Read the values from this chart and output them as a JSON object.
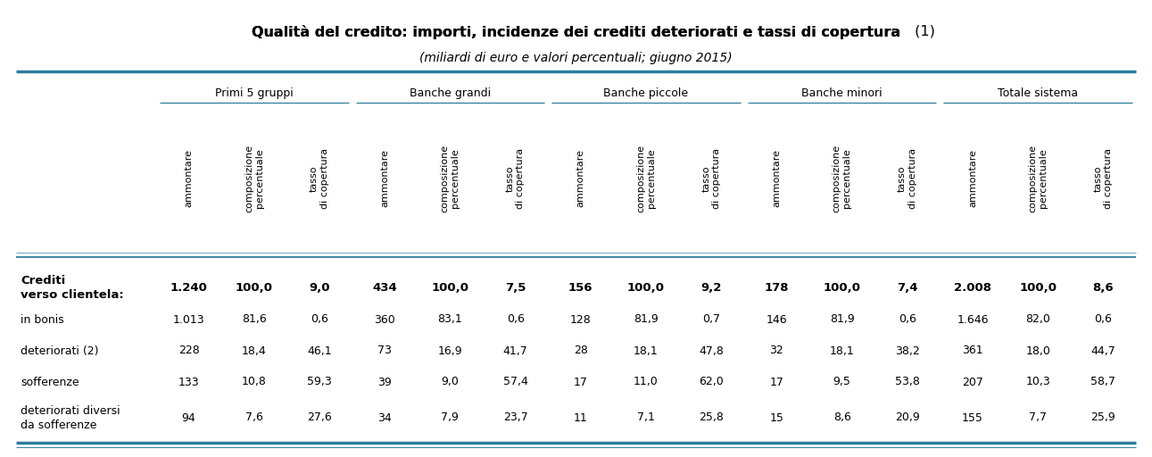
{
  "title_bold": "Qualità del credito: importi, incidenze dei crediti deteriorati e tassi di copertura",
  "title_normal": " (1)",
  "subtitle": "(miliardi di euro e valori percentuali; giugno 2015)",
  "col_groups": [
    "Primi 5 gruppi",
    "Banche grandi",
    "Banche piccole",
    "Banche minori",
    "Totale sistema"
  ],
  "col_subheaders": [
    "ammontare",
    "composizione\npercentuale",
    "tasso\ndi copertura"
  ],
  "row_labels": [
    [
      "Crediti\nverso clientela:",
      true
    ],
    [
      "in bonis",
      false
    ],
    [
      "deteriorati (2)",
      false
    ],
    [
      "sofferenze",
      false
    ],
    [
      "deteriorati diversi\nda sofferenze",
      false
    ]
  ],
  "data": [
    [
      "1.240",
      "100,0",
      "9,0",
      "434",
      "100,0",
      "7,5",
      "156",
      "100,0",
      "9,2",
      "178",
      "100,0",
      "7,4",
      "2.008",
      "100,0",
      "8,6"
    ],
    [
      "1.013",
      "81,6",
      "0,6",
      "360",
      "83,1",
      "0,6",
      "128",
      "81,9",
      "0,7",
      "146",
      "81,9",
      "0,6",
      "1.646",
      "82,0",
      "0,6"
    ],
    [
      "228",
      "18,4",
      "46,1",
      "73",
      "16,9",
      "41,7",
      "28",
      "18,1",
      "47,8",
      "32",
      "18,1",
      "38,2",
      "361",
      "18,0",
      "44,7"
    ],
    [
      "133",
      "10,8",
      "59,3",
      "39",
      "9,0",
      "57,4",
      "17",
      "11,0",
      "62,0",
      "17",
      "9,5",
      "53,8",
      "207",
      "10,3",
      "58,7"
    ],
    [
      "94",
      "7,6",
      "27,6",
      "34",
      "7,9",
      "23,7",
      "11",
      "7,1",
      "25,8",
      "15",
      "8,6",
      "20,9",
      "155",
      "7,7",
      "25,9"
    ]
  ],
  "teal_color": "#2e7d9e",
  "background_color": "#ffffff",
  "text_color": "#000000",
  "figsize": [
    12.91,
    5.12
  ],
  "dpi": 100
}
